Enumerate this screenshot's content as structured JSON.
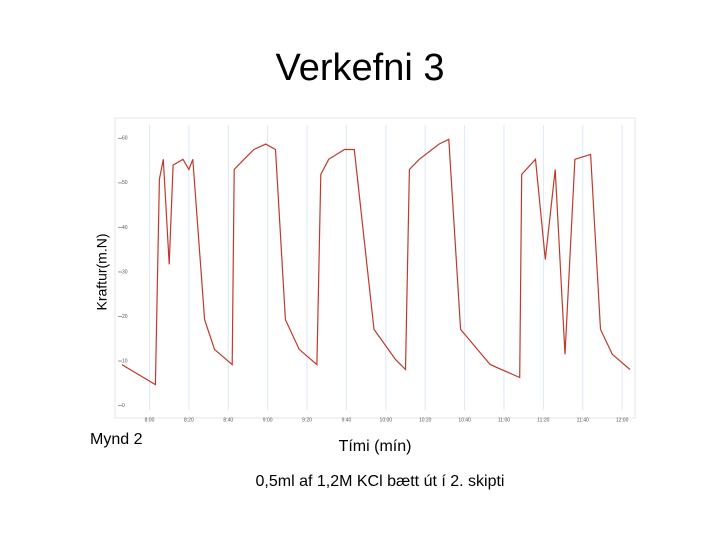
{
  "chart_data": {
    "type": "line",
    "title": "Verkefni 3",
    "subtitle": "0,5ml af 1,2M KCl bætt út í 2. skipti",
    "caption": "Mynd 2",
    "x_label": "Tími (mín)",
    "y_label": "Kraftur(m.N)",
    "x": [
      466,
      483,
      485,
      487,
      490,
      492,
      497,
      500,
      502,
      508,
      513,
      522,
      523,
      528,
      533,
      539,
      544,
      549,
      556,
      565,
      567,
      571,
      579,
      584,
      594,
      605,
      610,
      612,
      617,
      627,
      632,
      638,
      653,
      668,
      669,
      676,
      681,
      686,
      691,
      696,
      704,
      709,
      715,
      724
    ],
    "series": [
      {
        "name": "Kraftur",
        "color": "#c0392b",
        "values": [
          9.2,
          4.7,
          50.8,
          55.3,
          31.7,
          54,
          55.3,
          53,
          55.3,
          19.3,
          12.6,
          9.2,
          53,
          55.3,
          57.5,
          58.7,
          57.5,
          19.3,
          12.6,
          9.2,
          51.9,
          55.3,
          57.5,
          57.5,
          17.1,
          10.3,
          8.1,
          53,
          55.3,
          58.7,
          59.8,
          17.1,
          9.2,
          6.3,
          51.9,
          55.3,
          32.8,
          53,
          11.5,
          55.3,
          56.4,
          17.1,
          11.5,
          8.1
        ]
      }
    ],
    "xlim": [
      464,
      724
    ],
    "ylim": [
      -1,
      63
    ],
    "xticks": [
      {
        "value": 480,
        "label": "8:00"
      },
      {
        "value": 500,
        "label": "8:20"
      },
      {
        "value": 520,
        "label": "8:40"
      },
      {
        "value": 540,
        "label": "9:00"
      },
      {
        "value": 560,
        "label": "9:20"
      },
      {
        "value": 580,
        "label": "9:40"
      },
      {
        "value": 600,
        "label": "10:00"
      },
      {
        "value": 620,
        "label": "10:20"
      },
      {
        "value": 640,
        "label": "10:40"
      },
      {
        "value": 660,
        "label": "11:00"
      },
      {
        "value": 680,
        "label": "11:20"
      },
      {
        "value": 700,
        "label": "11:40"
      },
      {
        "value": 720,
        "label": "12:00"
      }
    ],
    "yticks": [
      0,
      10,
      20,
      30,
      40,
      50,
      60
    ],
    "grid": true
  }
}
